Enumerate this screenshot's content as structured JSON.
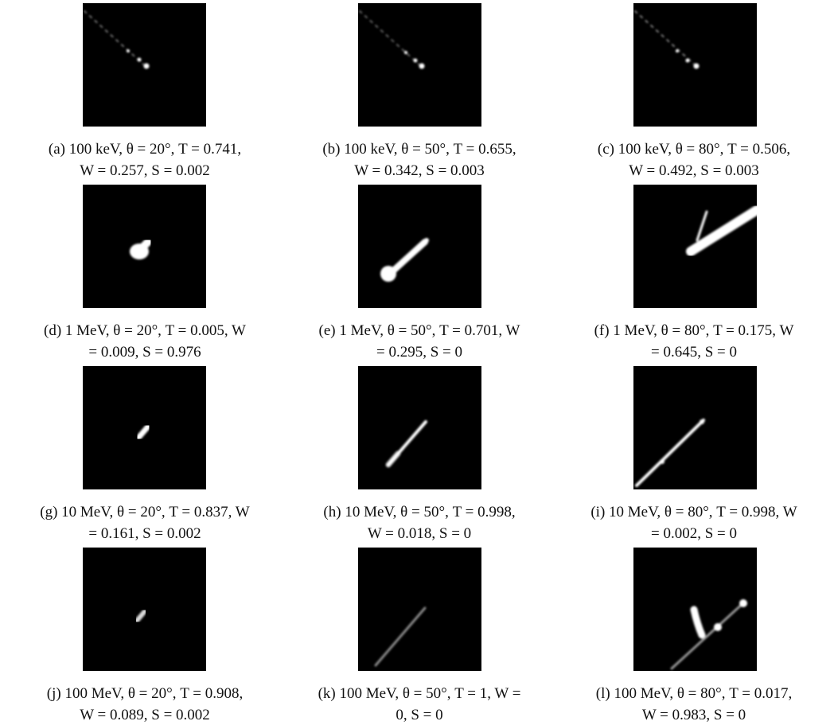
{
  "panels": [
    {
      "caption": [
        "(a) 100 keV, θ = 20°, T = 0.741,",
        "W = 0.257, S = 0.002"
      ]
    },
    {
      "caption": [
        "(b) 100 keV, θ = 50°, T = 0.655,",
        "W = 0.342, S = 0.003"
      ]
    },
    {
      "caption": [
        "(c) 100 keV, θ = 80°, T = 0.506,",
        "W = 0.492, S = 0.003"
      ]
    },
    {
      "caption": [
        "(d) 1 MeV, θ = 20°, T = 0.005, W",
        "= 0.009, S = 0.976"
      ]
    },
    {
      "caption": [
        "(e) 1 MeV, θ = 50°, T = 0.701, W",
        "= 0.295, S = 0"
      ]
    },
    {
      "caption": [
        "(f) 1 MeV, θ = 80°, T = 0.175, W",
        "= 0.645, S = 0"
      ]
    },
    {
      "caption": [
        "(g) 10 MeV, θ = 20°, T = 0.837, W",
        "= 0.161, S = 0.002"
      ]
    },
    {
      "caption": [
        "(h) 10 MeV, θ = 50°, T = 0.998,",
        "W = 0.018, S = 0"
      ]
    },
    {
      "caption": [
        "(i) 10 MeV, θ = 80°, T = 0.998, W",
        "= 0.002, S = 0"
      ]
    },
    {
      "caption": [
        "(j) 100 MeV, θ = 20°, T = 0.908,",
        "W = 0.089, S = 0.002"
      ]
    },
    {
      "caption": [
        "(k) 100 MeV, θ = 50°, T = 1, W =",
        "0, S = 0"
      ]
    },
    {
      "caption": [
        "(l) 100 MeV, θ = 80°, T = 0.017,",
        "W = 0.983, S = 0"
      ]
    }
  ]
}
